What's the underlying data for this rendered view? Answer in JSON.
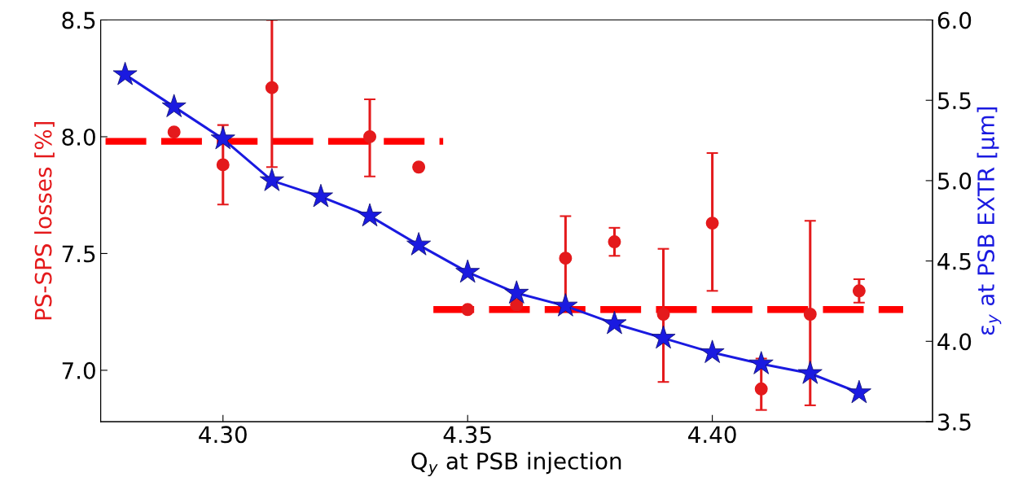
{
  "chart_data": {
    "type": "scatter",
    "xlabel": "Q$_{y}$ at PSB injection",
    "ylabel": "PS-SPS losses [%]",
    "y2label": "ε$_{y}$ at PSB EXTR [μm]",
    "xlim": [
      4.275,
      4.445
    ],
    "xticks": [
      {
        "value": 4.3,
        "label": "4.30"
      },
      {
        "value": 4.35,
        "label": "4.35"
      },
      {
        "value": 4.4,
        "label": "4.40"
      }
    ],
    "ylim": [
      6.78,
      8.5
    ],
    "yticks": [
      {
        "value": 7.0,
        "label": "7.0"
      },
      {
        "value": 7.5,
        "label": "7.5"
      },
      {
        "value": 8.0,
        "label": "8.0"
      },
      {
        "value": 8.5,
        "label": "8.5"
      }
    ],
    "y2lim": [
      3.5,
      6.0
    ],
    "y2ticks": [
      {
        "value": 3.5,
        "label": "3.5"
      },
      {
        "value": 4.0,
        "label": "4.0"
      },
      {
        "value": 4.5,
        "label": "4.5"
      },
      {
        "value": 5.0,
        "label": "5.0"
      },
      {
        "value": 5.5,
        "label": "5.5"
      },
      {
        "value": 6.0,
        "label": "6.0"
      }
    ],
    "grid": false,
    "legend": false,
    "series": [
      {
        "color": "#e41a1c",
        "marker": "circle",
        "x": [
          4.29,
          4.3,
          4.31,
          4.33,
          4.34,
          4.35,
          4.36,
          4.37,
          4.38,
          4.39,
          4.4,
          4.41,
          4.42,
          4.43
        ],
        "values": [
          8.02,
          7.88,
          8.21,
          8.0,
          7.87,
          7.26,
          7.28,
          7.48,
          7.55,
          7.24,
          7.63,
          6.92,
          7.24,
          7.34
        ],
        "errors": [
          null,
          [
            7.71,
            8.05
          ],
          [
            7.87,
            8.5
          ],
          [
            7.83,
            8.16
          ],
          null,
          null,
          null,
          [
            7.28,
            7.66
          ],
          [
            7.49,
            7.61
          ],
          [
            6.95,
            7.52
          ],
          [
            7.34,
            7.93
          ],
          [
            6.83,
            7.05
          ],
          [
            6.85,
            7.64
          ],
          [
            7.29,
            7.39
          ]
        ]
      },
      {
        "type": "line",
        "color": "#ff0000",
        "line_style": "dashed",
        "marker": "none",
        "x": [
          4.276,
          4.345
        ],
        "values": [
          7.98,
          7.98
        ]
      },
      {
        "type": "line",
        "color": "#ff0000",
        "line_style": "dashed",
        "marker": "none",
        "x": [
          4.343,
          4.439
        ],
        "values": [
          7.26,
          7.26
        ]
      },
      {
        "type": "line",
        "axis": "y2",
        "color": "#1a1ae0",
        "marker": "star",
        "line_style": "solid",
        "x": [
          4.28,
          4.29,
          4.3,
          4.31,
          4.32,
          4.33,
          4.34,
          4.35,
          4.36,
          4.37,
          4.38,
          4.39,
          4.4,
          4.41,
          4.42,
          4.43
        ],
        "values": [
          5.66,
          5.46,
          5.26,
          5.0,
          4.9,
          4.78,
          4.6,
          4.43,
          4.3,
          4.22,
          4.11,
          4.02,
          3.93,
          3.86,
          3.8,
          3.68
        ]
      }
    ]
  }
}
